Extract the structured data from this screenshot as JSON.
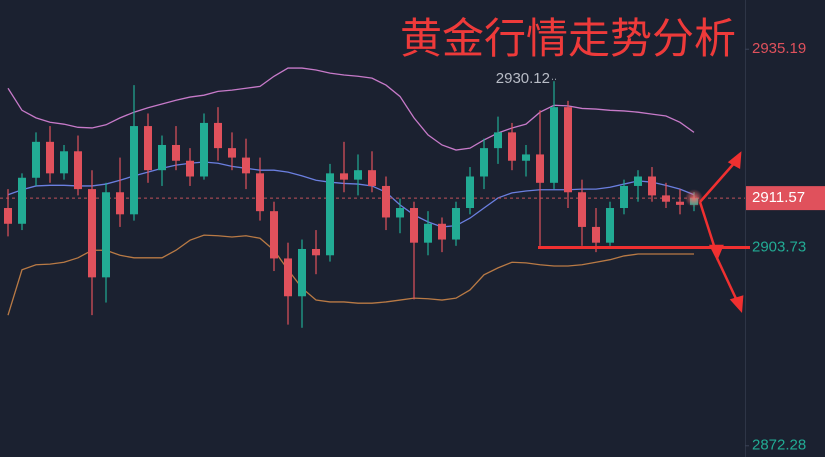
{
  "chart_data": {
    "type": "candlestick",
    "title": "黄金行情走势分析",
    "ylim": [
      2870.5,
      2943.0
    ],
    "yticks": [
      2935.19,
      2872.28
    ],
    "up_color": "#22ab94",
    "down_color": "#e0515c",
    "open": [
      2910.0,
      2907.5,
      2914.8,
      2920.5,
      2915.5,
      2919.0,
      2913.0,
      2899.0,
      2912.5,
      2909.0,
      2923.0,
      2916.0,
      2920.0,
      2917.5,
      2915.0,
      2923.5,
      2919.5,
      2918.0,
      2915.5,
      2909.5,
      2902.0,
      2896.0,
      2903.5,
      2902.5,
      2915.5,
      2914.5,
      2916.0,
      2913.5,
      2908.5,
      2910.0,
      2904.5,
      2907.5,
      2905.0,
      2910.0,
      2915.0,
      2919.5,
      2922.0,
      2917.5,
      2918.5,
      2914.0,
      2926.0,
      2912.5,
      2907.0,
      2904.5,
      2910.0,
      2913.5,
      2915.0,
      2912.0,
      2911.0,
      2910.5
    ],
    "high": [
      2913.0,
      2915.5,
      2922.0,
      2923.0,
      2920.0,
      2921.5,
      2916.0,
      2914.0,
      2918.0,
      2929.5,
      2925.0,
      2921.5,
      2923.0,
      2919.5,
      2925.0,
      2926.0,
      2922.0,
      2921.0,
      2918.0,
      2911.0,
      2904.5,
      2905.0,
      2906.5,
      2917.0,
      2920.5,
      2918.5,
      2919.0,
      2915.0,
      2911.5,
      2911.0,
      2909.5,
      2908.5,
      2911.0,
      2916.5,
      2921.0,
      2924.5,
      2923.5,
      2920.0,
      2925.5,
      2930.12,
      2927.0,
      2914.5,
      2910.0,
      2911.0,
      2914.5,
      2916.0,
      2916.5,
      2914.0,
      2913.0,
      2912.5
    ],
    "low": [
      2905.5,
      2906.5,
      2913.5,
      2914.0,
      2914.5,
      2912.0,
      2893.0,
      2895.0,
      2907.0,
      2908.0,
      2914.0,
      2913.5,
      2916.0,
      2913.5,
      2914.5,
      2917.5,
      2916.0,
      2913.0,
      2908.0,
      2900.0,
      2891.5,
      2891.0,
      2899.5,
      2901.5,
      2912.5,
      2912.0,
      2912.5,
      2906.5,
      2906.0,
      2895.5,
      2902.5,
      2903.0,
      2904.0,
      2909.0,
      2913.0,
      2917.0,
      2916.0,
      2915.0,
      2904.0,
      2913.0,
      2910.0,
      2904.0,
      2903.0,
      2904.0,
      2909.0,
      2911.0,
      2911.0,
      2910.0,
      2909.0,
      2909.5
    ],
    "close": [
      2907.5,
      2914.8,
      2920.5,
      2915.5,
      2919.0,
      2913.0,
      2899.0,
      2912.5,
      2909.0,
      2923.0,
      2916.0,
      2920.0,
      2917.5,
      2915.0,
      2923.5,
      2919.5,
      2918.0,
      2915.5,
      2909.5,
      2902.0,
      2896.0,
      2903.5,
      2902.5,
      2915.5,
      2914.5,
      2916.0,
      2913.5,
      2908.5,
      2910.0,
      2904.5,
      2907.5,
      2905.0,
      2910.0,
      2915.0,
      2919.5,
      2922.0,
      2917.5,
      2918.5,
      2914.0,
      2926.0,
      2912.5,
      2907.0,
      2904.5,
      2910.0,
      2913.5,
      2915.0,
      2912.0,
      2911.0,
      2910.5,
      2911.57
    ],
    "lines": [
      {
        "color": "#c77ac9",
        "values": [
          2929.0,
          2925.5,
          2924.3,
          2923.6,
          2923.3,
          2922.8,
          2922.7,
          2923.2,
          2924.3,
          2925.2,
          2925.9,
          2926.5,
          2927.1,
          2927.6,
          2927.9,
          2928.5,
          2928.7,
          2929.0,
          2929.3,
          2930.9,
          2932.2,
          2932.2,
          2931.9,
          2931.4,
          2931.1,
          2930.9,
          2930.6,
          2929.5,
          2927.7,
          2924.3,
          2921.6,
          2920.0,
          2919.2,
          2919.5,
          2920.8,
          2921.9,
          2922.7,
          2923.3,
          2925.2,
          2926.3,
          2926.2,
          2925.8,
          2925.7,
          2925.5,
          2925.4,
          2925.2,
          2924.9,
          2924.6,
          2923.6,
          2922.0
        ]
      },
      {
        "color": "#6b7fe0",
        "values": [
          2912.1,
          2912.9,
          2913.5,
          2913.6,
          2913.6,
          2913.5,
          2913.5,
          2913.8,
          2914.4,
          2915.1,
          2915.7,
          2916.3,
          2916.8,
          2917.1,
          2917.3,
          2917.1,
          2916.6,
          2916.3,
          2916.0,
          2916.0,
          2915.7,
          2915.1,
          2914.4,
          2914.1,
          2913.9,
          2913.8,
          2913.5,
          2912.5,
          2910.5,
          2908.9,
          2907.8,
          2907.0,
          2907.2,
          2908.4,
          2910.0,
          2911.6,
          2912.4,
          2912.7,
          2912.9,
          2912.9,
          2912.9,
          2913.0,
          2913.0,
          2913.3,
          2913.8,
          2914.3,
          2914.1,
          2913.6,
          2913.0,
          2912.1
        ]
      },
      {
        "color": "#b97a45",
        "values": [
          2893.0,
          2900.2,
          2901.0,
          2901.1,
          2901.4,
          2902.1,
          2903.3,
          2903.3,
          2902.5,
          2902.1,
          2902.1,
          2902.1,
          2903.3,
          2904.9,
          2905.7,
          2905.6,
          2905.4,
          2905.6,
          2905.2,
          2903.3,
          2900.2,
          2897.3,
          2895.4,
          2895.1,
          2895.1,
          2894.9,
          2894.9,
          2895.1,
          2895.4,
          2895.7,
          2895.6,
          2895.4,
          2895.7,
          2897.0,
          2899.4,
          2900.5,
          2901.4,
          2901.3,
          2901.0,
          2900.8,
          2900.8,
          2901.0,
          2901.4,
          2901.8,
          2902.4,
          2902.7,
          2902.7,
          2902.7,
          2902.7,
          2902.7
        ]
      }
    ],
    "last_price": 2911.57,
    "support_level": 2903.73,
    "high_label": 2930.12
  }
}
